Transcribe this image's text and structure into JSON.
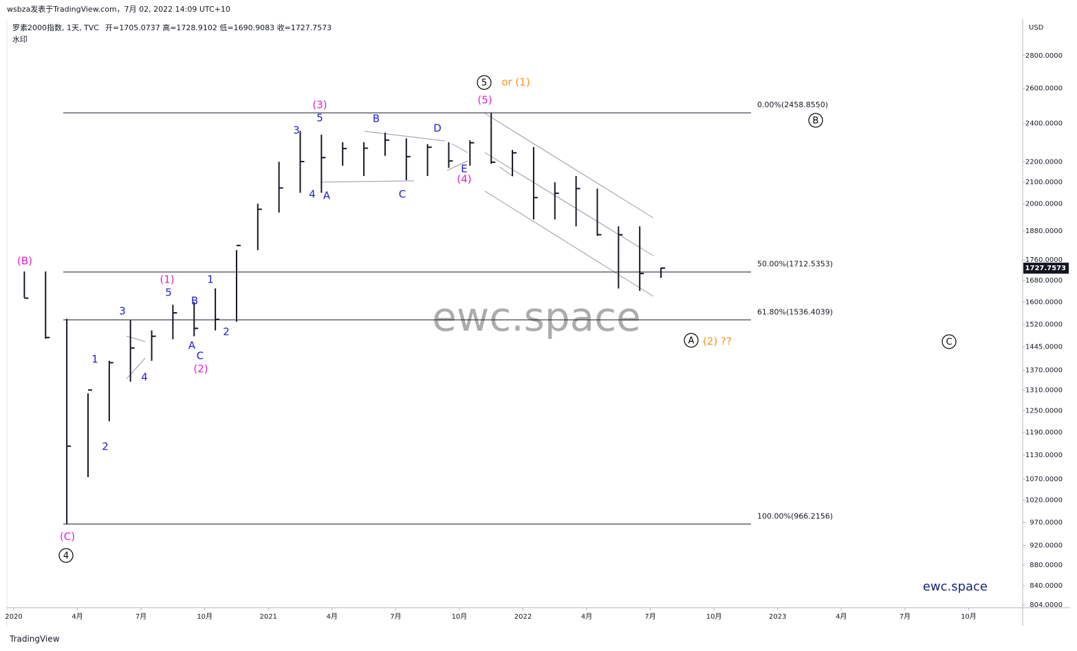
{
  "header": {
    "byline": "wsbza发表于TradingView.com，7月 02, 2022 14:09 UTC+10",
    "symbol": "罗素2000指数, 1天, TVC",
    "ohlc": "开=1705.0737  高=1728.9102  低=1690.9083  收=1727.7573",
    "watermark_note": "水印",
    "footer": "TradingView"
  },
  "chart_data": {
    "type": "ohlc",
    "currency": "USD",
    "log_scale": true,
    "color": "#131722",
    "x": [
      "2020-01",
      "2020-02",
      "2020-03",
      "2020-04",
      "2020-05",
      "2020-06",
      "2020-07",
      "2020-08",
      "2020-09",
      "2020-10",
      "2020-11",
      "2020-12",
      "2021-01",
      "2021-02",
      "2021-03",
      "2021-04",
      "2021-05",
      "2021-06",
      "2021-07",
      "2021-08",
      "2021-09",
      "2021-10",
      "2021-11",
      "2021-12",
      "2022-01",
      "2022-02",
      "2022-03",
      "2022-04",
      "2022-05",
      "2022-06",
      "2022-07"
    ],
    "high": [
      1715,
      1715,
      1540,
      1300,
      1400,
      1535,
      1500,
      1590,
      1600,
      1650,
      1800,
      2000,
      2200,
      2360,
      2340,
      2300,
      2300,
      2350,
      2320,
      2290,
      2300,
      2310,
      2459,
      2260,
      2275,
      2100,
      2130,
      2070,
      1900,
      1900,
      1729
    ],
    "low": [
      1615,
      1472,
      966,
      1075,
      1220,
      1335,
      1400,
      1470,
      1480,
      1500,
      1530,
      1800,
      1960,
      2050,
      2050,
      2180,
      2130,
      2230,
      2110,
      2130,
      2170,
      2180,
      2190,
      2130,
      1930,
      1930,
      1900,
      1860,
      1650,
      1641,
      1690
    ],
    "close": [
      1614,
      1476,
      1153,
      1310,
      1394,
      1441,
      1480,
      1561,
      1507,
      1538,
      1819,
      1975,
      2073,
      2201,
      2221,
      2267,
      2269,
      2311,
      2226,
      2274,
      2204,
      2297,
      2198,
      2245,
      2028,
      2048,
      2070,
      1864,
      1864,
      1707,
      1728
    ],
    "xlim": [
      "2020-01",
      "2024-01"
    ],
    "xticks": [
      {
        "value": "2020-01",
        "label": "2020"
      },
      {
        "value": "2020-04",
        "label": "4月"
      },
      {
        "value": "2020-07",
        "label": "7月"
      },
      {
        "value": "2020-10",
        "label": "10月"
      },
      {
        "value": "2021-01",
        "label": "2021"
      },
      {
        "value": "2021-04",
        "label": "4月"
      },
      {
        "value": "2021-07",
        "label": "7月"
      },
      {
        "value": "2021-10",
        "label": "10月"
      },
      {
        "value": "2022-01",
        "label": "2022"
      },
      {
        "value": "2022-04",
        "label": "4月"
      },
      {
        "value": "2022-07",
        "label": "7月"
      },
      {
        "value": "2022-10",
        "label": "10月"
      },
      {
        "value": "2023-01",
        "label": "2023"
      },
      {
        "value": "2023-04",
        "label": "4月"
      },
      {
        "value": "2023-07",
        "label": "7月"
      },
      {
        "value": "2023-10",
        "label": "10月"
      }
    ],
    "ylim": [
      799,
      3041
    ],
    "yticks": [
      {
        "value": 804,
        "label": "804.0000"
      },
      {
        "value": 840,
        "label": "840.0000"
      },
      {
        "value": 880,
        "label": "880.0000"
      },
      {
        "value": 920,
        "label": "920.0000"
      },
      {
        "value": 970,
        "label": "970.0000"
      },
      {
        "value": 1020,
        "label": "1020.0000"
      },
      {
        "value": 1070,
        "label": "1070.0000"
      },
      {
        "value": 1130,
        "label": "1130.0000"
      },
      {
        "value": 1190,
        "label": "1190.0000"
      },
      {
        "value": 1250,
        "label": "1250.0000"
      },
      {
        "value": 1310,
        "label": "1310.0000"
      },
      {
        "value": 1370,
        "label": "1370.0000"
      },
      {
        "value": 1445,
        "label": "1445.0000"
      },
      {
        "value": 1520,
        "label": "1520.0000"
      },
      {
        "value": 1600,
        "label": "1600.0000"
      },
      {
        "value": 1680,
        "label": "1680.0000"
      },
      {
        "value": 1760,
        "label": "1760.0000"
      },
      {
        "value": 1880,
        "label": "1880.0000"
      },
      {
        "value": 2000,
        "label": "2000.0000"
      },
      {
        "value": 2100,
        "label": "2100.0000"
      },
      {
        "value": 2200,
        "label": "2200.0000"
      },
      {
        "value": 2400,
        "label": "2400.0000"
      },
      {
        "value": 2600,
        "label": "2600.0000"
      },
      {
        "value": 2800,
        "label": "2800.0000"
      }
    ],
    "last_price": 1727.7573,
    "fib_levels": [
      {
        "value": 2458.855,
        "label": "0.00%(2458.8550)"
      },
      {
        "value": 1712.5353,
        "label": "50.00%(1712.5353)"
      },
      {
        "value": 1536.4039,
        "label": "61.80%(1536.4039)"
      },
      {
        "value": 966.2156,
        "label": "100.00%(966.2156)"
      }
    ],
    "watermark": "ewc.space",
    "brand": "ewc.space",
    "annotations": [
      {
        "text": "(B)",
        "color": "#e31fc6"
      },
      {
        "text": "(1)",
        "color": "#e31fc6"
      },
      {
        "text": "(2)",
        "color": "#e31fc6"
      },
      {
        "text": "(3)",
        "color": "#e31fc6"
      },
      {
        "text": "(4)",
        "color": "#e31fc6"
      },
      {
        "text": "(5)",
        "color": "#e31fc6"
      },
      {
        "text": "(C)",
        "color": "#e31fc6"
      },
      {
        "text": "5",
        "color": "#1c1cd6"
      },
      {
        "text": "3",
        "color": "#1c1cd6"
      },
      {
        "text": "1",
        "color": "#1c1cd6"
      },
      {
        "text": "2",
        "color": "#1c1cd6"
      },
      {
        "text": "4",
        "color": "#1c1cd6"
      },
      {
        "text": "B",
        "color": "#1c1cd6"
      },
      {
        "text": "A",
        "color": "#1c1cd6"
      },
      {
        "text": "C",
        "color": "#1c1cd6"
      },
      {
        "text": "1",
        "color": "#1c1cd6"
      },
      {
        "text": "2",
        "color": "#1c1cd6"
      },
      {
        "text": "3",
        "color": "#1c1cd6"
      },
      {
        "text": "5",
        "color": "#1c1cd6"
      },
      {
        "text": "4",
        "color": "#1c1cd6"
      },
      {
        "text": "A",
        "color": "#1c1cd6"
      },
      {
        "text": "B",
        "color": "#1c1cd6"
      },
      {
        "text": "C",
        "color": "#1c1cd6"
      },
      {
        "text": "D",
        "color": "#1c1cd6"
      },
      {
        "text": "E",
        "color": "#1c1cd6"
      },
      {
        "text": "or (1)",
        "color": "#f7931a"
      },
      {
        "text": "(2) ??",
        "color": "#f7931a"
      },
      {
        "text": "5",
        "color": "#000000",
        "circled": true
      },
      {
        "text": "4",
        "color": "#000000",
        "circled": true
      },
      {
        "text": "B",
        "color": "#000000",
        "circled": true
      },
      {
        "text": "A",
        "color": "#000000",
        "circled": true
      },
      {
        "text": "C",
        "color": "#000000",
        "circled": true
      }
    ]
  }
}
